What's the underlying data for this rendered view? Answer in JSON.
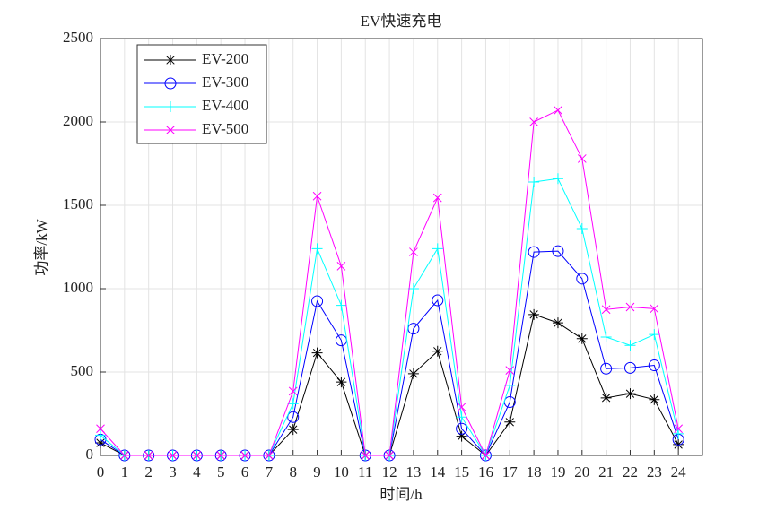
{
  "chart_data": {
    "type": "line",
    "title": "EV快速充电",
    "x_label": "时间/h",
    "y_label": "功率/kW",
    "x": [
      0,
      1,
      2,
      3,
      4,
      5,
      6,
      7,
      8,
      9,
      10,
      11,
      12,
      13,
      14,
      15,
      16,
      17,
      18,
      19,
      20,
      21,
      22,
      23,
      24
    ],
    "series": [
      {
        "name": "EV-200",
        "color": "#000000",
        "marker": "star",
        "values": [
          75,
          0,
          0,
          0,
          0,
          0,
          0,
          0,
          155,
          615,
          440,
          0,
          0,
          490,
          625,
          115,
          0,
          200,
          845,
          795,
          700,
          345,
          370,
          335,
          65
        ]
      },
      {
        "name": "EV-300",
        "color": "#0000ff",
        "marker": "circle",
        "values": [
          95,
          0,
          0,
          0,
          0,
          0,
          0,
          0,
          230,
          925,
          690,
          0,
          0,
          760,
          930,
          160,
          0,
          320,
          1220,
          1225,
          1060,
          520,
          525,
          540,
          95
        ]
      },
      {
        "name": "EV-400",
        "color": "#00ffff",
        "marker": "plus",
        "values": [
          120,
          0,
          0,
          0,
          0,
          0,
          0,
          0,
          310,
          1240,
          900,
          0,
          0,
          1000,
          1240,
          230,
          0,
          420,
          1640,
          1660,
          1360,
          710,
          660,
          725,
          130
        ]
      },
      {
        "name": "EV-500",
        "color": "#ff00ff",
        "marker": "cross",
        "values": [
          160,
          0,
          0,
          0,
          0,
          0,
          0,
          0,
          385,
          1555,
          1135,
          0,
          0,
          1220,
          1545,
          290,
          0,
          510,
          2000,
          2070,
          1780,
          875,
          890,
          880,
          160
        ]
      }
    ],
    "xlim": [
      0,
      25
    ],
    "xticks": [
      0,
      1,
      2,
      3,
      4,
      5,
      6,
      7,
      8,
      9,
      10,
      11,
      12,
      13,
      14,
      15,
      16,
      17,
      18,
      19,
      20,
      21,
      22,
      23,
      24
    ],
    "ylim": [
      0,
      2500
    ],
    "yticks": [
      0,
      500,
      1000,
      1500,
      2000,
      2500
    ],
    "grid": true,
    "legend_position": "upper-left"
  }
}
